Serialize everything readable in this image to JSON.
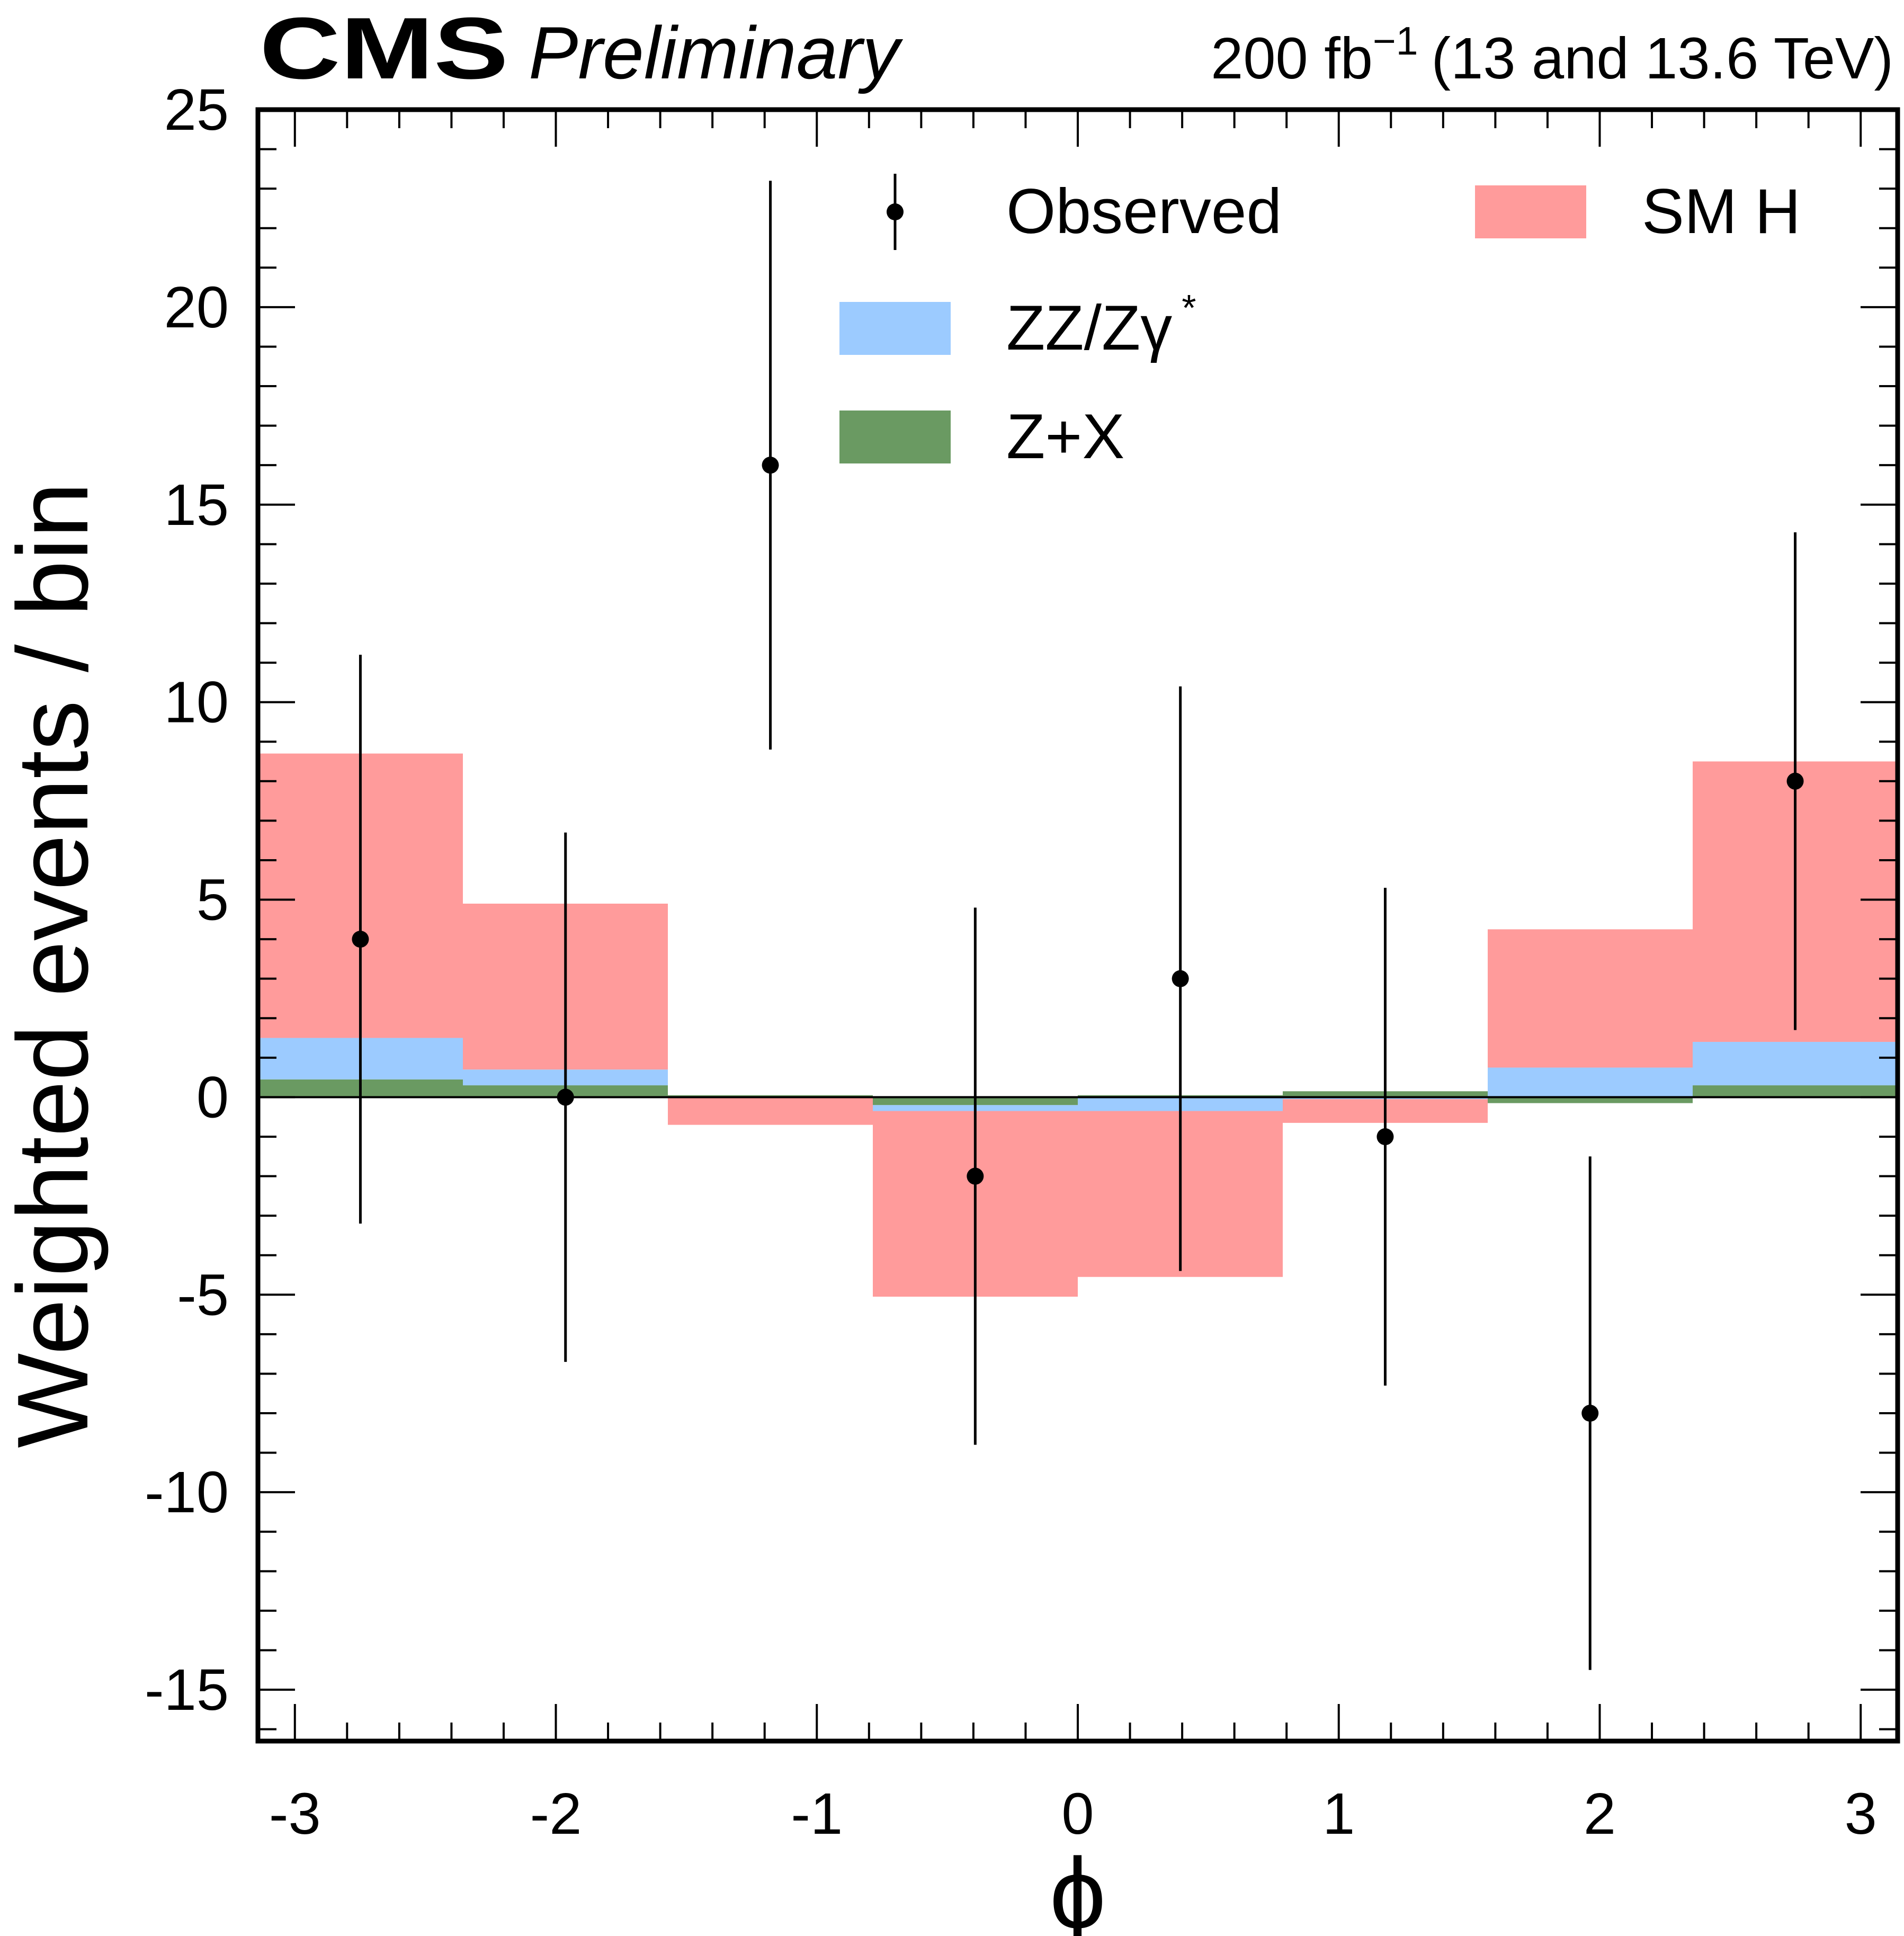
{
  "header": {
    "experiment": "CMS",
    "status": "Preliminary",
    "lumi_value": "200 fb",
    "lumi_exp": "−1",
    "lumi_energy": "(13 and 13.6 TeV)"
  },
  "chart_data": {
    "type": "bar",
    "xlabel": "ϕ",
    "ylabel": "Weighted events / bin",
    "xlim": [
      -3.1416,
      3.1416
    ],
    "ylim": [
      -16.3,
      25
    ],
    "xticks": [
      -3,
      -2,
      -1,
      0,
      1,
      2,
      3
    ],
    "yticks": [
      -15,
      -10,
      -5,
      0,
      5,
      10,
      15,
      20,
      25
    ],
    "bin_edges": [
      -3.1416,
      -2.3562,
      -1.5708,
      -0.7854,
      0,
      0.7854,
      1.5708,
      2.3562,
      3.1416
    ],
    "series": [
      {
        "name": "Z+X",
        "color": "#6a9a62",
        "values": [
          0.45,
          0.3,
          0.05,
          -0.2,
          0.05,
          0.15,
          -0.15,
          0.3
        ]
      },
      {
        "name": "ZZ/Zγ",
        "name_sup": "*",
        "color": "#9ccbff",
        "values": [
          1.05,
          0.4,
          0.0,
          -0.15,
          -0.35,
          -0.05,
          0.75,
          1.1
        ]
      },
      {
        "name": "SM H",
        "color": "#ff9b9b",
        "values": [
          7.2,
          4.2,
          -0.7,
          -4.7,
          -4.2,
          -0.6,
          3.5,
          7.1
        ]
      }
    ],
    "observed": {
      "name": "Observed",
      "x": [
        -2.749,
        -1.963,
        -1.178,
        -0.393,
        0.393,
        1.178,
        1.963,
        2.749
      ],
      "y": [
        4,
        0,
        16,
        -2,
        3,
        -1,
        -8,
        8
      ],
      "err_low": [
        7.2,
        6.7,
        7.2,
        6.8,
        7.4,
        6.3,
        6.5,
        6.3
      ],
      "err_high": [
        7.2,
        6.7,
        7.2,
        6.8,
        7.4,
        6.3,
        6.5,
        6.3
      ]
    },
    "legend": {
      "placement": "top-right",
      "entries": [
        "Observed",
        "SM H",
        "ZZ/Zγ",
        "Z+X"
      ]
    }
  }
}
